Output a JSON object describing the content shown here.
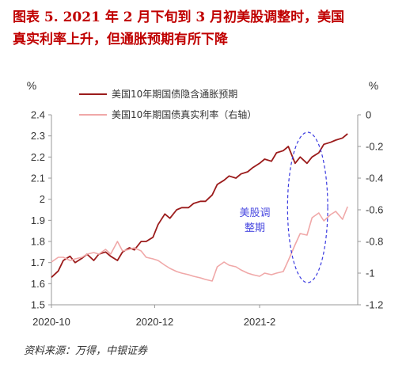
{
  "title_line1": "图表 5.  2021 年 2 月下旬到 3 月初美股调整时，美国",
  "title_line2": "真实利率上升，但通胀预期有所下降",
  "source": "资料来源：万得，中银证券",
  "colors": {
    "breakeven": "#9b1b1b",
    "real_rate": "#f0a8a8",
    "annotation": "#3a3ae0",
    "axis": "#999999"
  },
  "chart_data": {
    "type": "line",
    "title": "",
    "left_axis": {
      "unit": "%",
      "ylim": [
        1.5,
        2.4
      ],
      "ticks": [
        "1.5",
        "1.6",
        "1.7",
        "1.8",
        "1.9",
        "2",
        "2.1",
        "2.2",
        "2.3",
        "2.4"
      ]
    },
    "right_axis": {
      "unit": "%",
      "ylim": [
        -1.2,
        0
      ],
      "ticks": [
        "-1.2",
        "-1",
        "-0.8",
        "-0.6",
        "-0.4",
        "-0.2",
        "0"
      ]
    },
    "x_ticks": [
      "2020-10",
      "2020-12",
      "2021-2"
    ],
    "xlim": [
      "2020-10-01",
      "2021-03-31"
    ],
    "grid": false,
    "legend_position": "top-center",
    "annotation": {
      "text_line1": "美股调",
      "text_line2": "整期",
      "x_range": [
        "2021-02-18",
        "2021-03-10"
      ]
    },
    "series": [
      {
        "name": "美国10年期国债隐含通胀预期",
        "axis": "left",
        "points": [
          [
            "2020-10-01",
            1.63
          ],
          [
            "2020-10-05",
            1.66
          ],
          [
            "2020-10-08",
            1.71
          ],
          [
            "2020-10-12",
            1.73
          ],
          [
            "2020-10-15",
            1.7
          ],
          [
            "2020-10-19",
            1.72
          ],
          [
            "2020-10-22",
            1.74
          ],
          [
            "2020-10-26",
            1.71
          ],
          [
            "2020-10-29",
            1.74
          ],
          [
            "2020-11-02",
            1.75
          ],
          [
            "2020-11-05",
            1.73
          ],
          [
            "2020-11-09",
            1.71
          ],
          [
            "2020-11-12",
            1.75
          ],
          [
            "2020-11-16",
            1.77
          ],
          [
            "2020-11-19",
            1.76
          ],
          [
            "2020-11-23",
            1.8
          ],
          [
            "2020-11-26",
            1.8
          ],
          [
            "2020-11-30",
            1.82
          ],
          [
            "2020-12-03",
            1.88
          ],
          [
            "2020-12-07",
            1.93
          ],
          [
            "2020-12-10",
            1.91
          ],
          [
            "2020-12-14",
            1.95
          ],
          [
            "2020-12-17",
            1.96
          ],
          [
            "2020-12-21",
            1.96
          ],
          [
            "2020-12-24",
            1.98
          ],
          [
            "2020-12-28",
            1.99
          ],
          [
            "2020-12-31",
            1.99
          ],
          [
            "2021-01-04",
            2.02
          ],
          [
            "2021-01-07",
            2.07
          ],
          [
            "2021-01-11",
            2.09
          ],
          [
            "2021-01-14",
            2.11
          ],
          [
            "2021-01-18",
            2.1
          ],
          [
            "2021-01-21",
            2.12
          ],
          [
            "2021-01-25",
            2.13
          ],
          [
            "2021-01-28",
            2.15
          ],
          [
            "2021-02-01",
            2.17
          ],
          [
            "2021-02-04",
            2.19
          ],
          [
            "2021-02-08",
            2.18
          ],
          [
            "2021-02-11",
            2.22
          ],
          [
            "2021-02-15",
            2.23
          ],
          [
            "2021-02-18",
            2.25
          ],
          [
            "2021-02-22",
            2.17
          ],
          [
            "2021-02-25",
            2.2
          ],
          [
            "2021-03-01",
            2.17
          ],
          [
            "2021-03-04",
            2.2
          ],
          [
            "2021-03-08",
            2.22
          ],
          [
            "2021-03-11",
            2.26
          ],
          [
            "2021-03-15",
            2.27
          ],
          [
            "2021-03-18",
            2.28
          ],
          [
            "2021-03-22",
            2.29
          ],
          [
            "2021-03-25",
            2.31
          ]
        ]
      },
      {
        "name": "美国10年期国债真实利率（右轴）",
        "axis": "right",
        "points": [
          [
            "2020-10-01",
            -0.93
          ],
          [
            "2020-10-05",
            -0.9
          ],
          [
            "2020-10-08",
            -0.9
          ],
          [
            "2020-10-12",
            -0.92
          ],
          [
            "2020-10-15",
            -0.91
          ],
          [
            "2020-10-19",
            -0.9
          ],
          [
            "2020-10-22",
            -0.88
          ],
          [
            "2020-10-26",
            -0.87
          ],
          [
            "2020-10-29",
            -0.88
          ],
          [
            "2020-11-02",
            -0.85
          ],
          [
            "2020-11-05",
            -0.88
          ],
          [
            "2020-11-09",
            -0.8
          ],
          [
            "2020-11-12",
            -0.86
          ],
          [
            "2020-11-16",
            -0.85
          ],
          [
            "2020-11-19",
            -0.84
          ],
          [
            "2020-11-23",
            -0.86
          ],
          [
            "2020-11-26",
            -0.9
          ],
          [
            "2020-11-30",
            -0.91
          ],
          [
            "2020-12-03",
            -0.92
          ],
          [
            "2020-12-07",
            -0.95
          ],
          [
            "2020-12-10",
            -0.97
          ],
          [
            "2020-12-14",
            -0.99
          ],
          [
            "2020-12-17",
            -1.0
          ],
          [
            "2020-12-21",
            -1.01
          ],
          [
            "2020-12-24",
            -1.02
          ],
          [
            "2020-12-28",
            -1.03
          ],
          [
            "2020-12-31",
            -1.04
          ],
          [
            "2021-01-04",
            -1.05
          ],
          [
            "2021-01-07",
            -0.96
          ],
          [
            "2021-01-11",
            -0.93
          ],
          [
            "2021-01-14",
            -0.95
          ],
          [
            "2021-01-18",
            -0.96
          ],
          [
            "2021-01-21",
            -0.98
          ],
          [
            "2021-01-25",
            -1.0
          ],
          [
            "2021-01-28",
            -1.01
          ],
          [
            "2021-02-01",
            -1.02
          ],
          [
            "2021-02-04",
            -1.0
          ],
          [
            "2021-02-08",
            -1.01
          ],
          [
            "2021-02-11",
            -1.0
          ],
          [
            "2021-02-15",
            -0.99
          ],
          [
            "2021-02-18",
            -0.92
          ],
          [
            "2021-02-22",
            -0.82
          ],
          [
            "2021-02-25",
            -0.75
          ],
          [
            "2021-03-01",
            -0.76
          ],
          [
            "2021-03-04",
            -0.65
          ],
          [
            "2021-03-08",
            -0.62
          ],
          [
            "2021-03-11",
            -0.67
          ],
          [
            "2021-03-15",
            -0.63
          ],
          [
            "2021-03-18",
            -0.61
          ],
          [
            "2021-03-22",
            -0.66
          ],
          [
            "2021-03-25",
            -0.58
          ]
        ]
      }
    ]
  }
}
